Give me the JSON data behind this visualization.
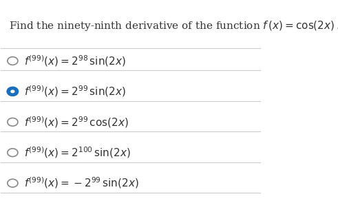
{
  "title": "Find the ninety-ninth derivative of the function $f\\,(x) = \\cos(2x)\\,.$",
  "options": [
    {
      "text": "$f^{(99)}(x) = 2^{98}\\,\\sin(2x)$",
      "selected": false
    },
    {
      "text": "$f^{(99)}(x) = 2^{99}\\,\\sin(2x)$",
      "selected": true
    },
    {
      "text": "$f^{(99)}(x) = 2^{99}\\,\\cos(2x)$",
      "selected": false
    },
    {
      "text": "$f^{(99)}(x) = 2^{100}\\,\\sin(2x)$",
      "selected": false
    },
    {
      "text": "$f^{(99)}(x) = -2^{99}\\,\\sin(2x)$",
      "selected": false
    }
  ],
  "bg_color": "#ffffff",
  "text_color": "#333333",
  "title_fontsize": 11.0,
  "option_fontsize": 11.0,
  "circle_color_empty": "#888888",
  "circle_color_filled": "#1a6fbd",
  "line_color": "#cccccc"
}
